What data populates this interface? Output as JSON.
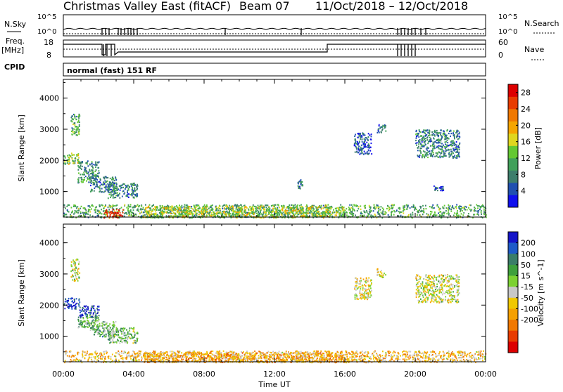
{
  "header": {
    "station": "Christmas Valley East (fitACF)",
    "beam": "Beam 07",
    "dates": "11/Oct/2018 – 12/Oct/2018"
  },
  "top_panels": {
    "nsky_label": "N.Sky",
    "nsky_ticks": [
      "10^5",
      "10^0"
    ],
    "nsearch_label": "N.Search",
    "nsearch_ticks": [
      "10^5",
      "10^0"
    ],
    "freq_label": "Freq.",
    "freq_unit": "[MHz]",
    "freq_ticks": [
      "18",
      "8"
    ],
    "nave_label": "Nave",
    "nave_ticks": [
      "60",
      "0"
    ],
    "cpid_label": "CPID",
    "cpid_text": "normal (fast) 151 RF"
  },
  "chart_data": [
    {
      "type": "heatmap",
      "panel": "power",
      "ylabel": "Slant Range [km]",
      "xlabel": "",
      "x_ticks": [
        "00:00",
        "04:00",
        "08:00",
        "12:00",
        "16:00",
        "20:00",
        "00:00"
      ],
      "y_ticks": [
        "1000",
        "2000",
        "3000",
        "4000"
      ],
      "xlim": [
        0,
        24
      ],
      "ylim": [
        180,
        4600
      ],
      "colorbar": {
        "label": "Power [dB]",
        "ticks": [
          "4",
          "8",
          "12",
          "16",
          "20",
          "24",
          "28"
        ],
        "range": [
          0,
          30
        ],
        "colors": [
          "#1010ee",
          "#2050b0",
          "#3d7e6c",
          "#41a05a",
          "#63c832",
          "#dfd61e",
          "#f5a500",
          "#f07800",
          "#e83c00",
          "#dc0000"
        ]
      },
      "regions": [
        {
          "t0": 0.0,
          "t1": 0.9,
          "r0": 1900,
          "r1": 2250,
          "c": 0.45
        },
        {
          "t0": 0.4,
          "t1": 0.9,
          "r0": 2800,
          "r1": 3500,
          "c": 0.35
        },
        {
          "t0": 0.8,
          "t1": 2.0,
          "r0": 1300,
          "r1": 2000,
          "c": 0.3
        },
        {
          "t0": 1.5,
          "t1": 3.0,
          "r0": 1000,
          "r1": 1500,
          "c": 0.25
        },
        {
          "t0": 2.5,
          "t1": 4.2,
          "r0": 800,
          "r1": 1300,
          "c": 0.25
        },
        {
          "t0": 0.0,
          "t1": 24.0,
          "r0": 180,
          "r1": 600,
          "c": 0.35
        },
        {
          "t0": 2.3,
          "t1": 3.4,
          "r0": 180,
          "r1": 450,
          "c": 0.92
        },
        {
          "t0": 4.5,
          "t1": 16.0,
          "r0": 180,
          "r1": 550,
          "c": 0.5
        },
        {
          "t0": 17.8,
          "t1": 18.3,
          "r0": 2900,
          "r1": 3200,
          "c": 0.2
        },
        {
          "t0": 20.0,
          "t1": 22.5,
          "r0": 2100,
          "r1": 3000,
          "c": 0.25
        },
        {
          "t0": 21.0,
          "t1": 21.6,
          "r0": 1050,
          "r1": 1200,
          "c": 0.15
        },
        {
          "t0": 16.5,
          "t1": 17.5,
          "r0": 2200,
          "r1": 2900,
          "c": 0.15
        },
        {
          "t0": 13.3,
          "t1": 13.6,
          "r0": 1100,
          "r1": 1400,
          "c": 0.2
        }
      ]
    },
    {
      "type": "heatmap",
      "panel": "velocity",
      "ylabel": "Slant Range [km]",
      "xlabel": "Time UT",
      "x_ticks": [
        "00:00",
        "04:00",
        "08:00",
        "12:00",
        "16:00",
        "20:00",
        "00:00"
      ],
      "y_ticks": [
        "1000",
        "2000",
        "3000",
        "4000"
      ],
      "xlim": [
        0,
        24
      ],
      "ylim": [
        180,
        4600
      ],
      "colorbar": {
        "label": "Velocity [m s^-1]",
        "ticks": [
          "200",
          "100",
          "50",
          "15",
          "-15",
          "-50",
          "-100",
          "-200"
        ],
        "range": [
          -250,
          250
        ],
        "colors": [
          "#1414c8",
          "#1e5ac8",
          "#3a7d68",
          "#3ea03c",
          "#7cd232",
          "#c8c8c8",
          "#f0c800",
          "#f5a000",
          "#f07800",
          "#e83c00",
          "#dc0000"
        ]
      },
      "regions": [
        {
          "t0": 0.0,
          "t1": 0.9,
          "r0": 1900,
          "r1": 2250,
          "c": 0.08
        },
        {
          "t0": 0.9,
          "t1": 2.0,
          "r0": 1600,
          "r1": 2000,
          "c": 0.12
        },
        {
          "t0": 0.4,
          "t1": 0.9,
          "r0": 2800,
          "r1": 3500,
          "c": 0.5
        },
        {
          "t0": 0.8,
          "t1": 2.0,
          "r0": 1300,
          "r1": 1700,
          "c": 0.35
        },
        {
          "t0": 1.5,
          "t1": 3.0,
          "r0": 1000,
          "r1": 1500,
          "c": 0.35
        },
        {
          "t0": 2.5,
          "t1": 4.2,
          "r0": 800,
          "r1": 1300,
          "c": 0.38
        },
        {
          "t0": 0.0,
          "t1": 24.0,
          "r0": 180,
          "r1": 550,
          "c": 0.62
        },
        {
          "t0": 4.5,
          "t1": 16.0,
          "r0": 180,
          "r1": 500,
          "c": 0.66
        },
        {
          "t0": 17.8,
          "t1": 18.3,
          "r0": 2900,
          "r1": 3200,
          "c": 0.5
        },
        {
          "t0": 20.0,
          "t1": 22.5,
          "r0": 2100,
          "r1": 3000,
          "c": 0.5
        },
        {
          "t0": 16.5,
          "t1": 17.5,
          "r0": 2200,
          "r1": 2900,
          "c": 0.55
        }
      ]
    }
  ]
}
